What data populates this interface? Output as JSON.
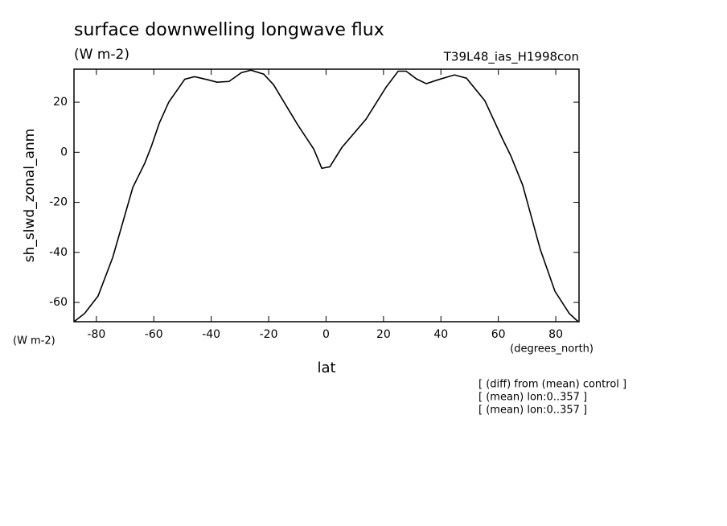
{
  "chart_data": {
    "type": "line",
    "title": "surface downwelling longwave flux",
    "subtitle": "(W m-2)",
    "run_label": "T39L48_ias_H1998con",
    "y_label": "sh_slwd_zonal_anm",
    "y_units": "(W m-2)",
    "x_units": "(degrees_north)",
    "x_label": "lat",
    "notes": [
      "[ (diff) from (mean) control ]",
      "[ (mean) lon:0..357 ]",
      "[ (mean) lon:0..357 ]"
    ],
    "x": [
      -87.8,
      -84.1,
      -79.4,
      -74.3,
      -67.3,
      -63.2,
      -60.9,
      -58.1,
      -54.8,
      -49.2,
      -45.8,
      -41.3,
      -38,
      -33.8,
      -29.5,
      -26.2,
      -21.7,
      -18.3,
      -14.1,
      -9.9,
      -4.3,
      -1.5,
      1.3,
      5.5,
      13.9,
      20.9,
      25.1,
      27.9,
      31.5,
      34.9,
      39.1,
      44.7,
      48.9,
      55.3,
      61.5,
      64.3,
      68.5,
      74.6,
      79.7,
      84.7,
      87.8
    ],
    "series": [
      {
        "name": "sh_slwd_zonal_anm",
        "color": "#000000",
        "values": [
          -67.7,
          -64.4,
          -57.4,
          -42,
          -14,
          -4.5,
          2.2,
          11.6,
          20,
          29.2,
          30.2,
          29,
          28,
          28.3,
          31.8,
          32.8,
          31.2,
          27,
          19,
          11,
          1.3,
          -6.4,
          -5.8,
          1.9,
          13.2,
          26,
          32.4,
          32.4,
          29.3,
          27.4,
          29,
          30.9,
          29.6,
          20.6,
          5.2,
          -1.3,
          -13.2,
          -38.8,
          -55.5,
          -64.4,
          -67.7
        ]
      }
    ],
    "xlim": [
      -87.8,
      88.1
    ],
    "ylim": [
      -67.7,
      33.2
    ],
    "xticks": [
      -80,
      -60,
      -40,
      -20,
      0,
      20,
      40,
      60,
      80
    ],
    "yticks": [
      -60,
      -40,
      -20,
      0,
      20
    ]
  }
}
